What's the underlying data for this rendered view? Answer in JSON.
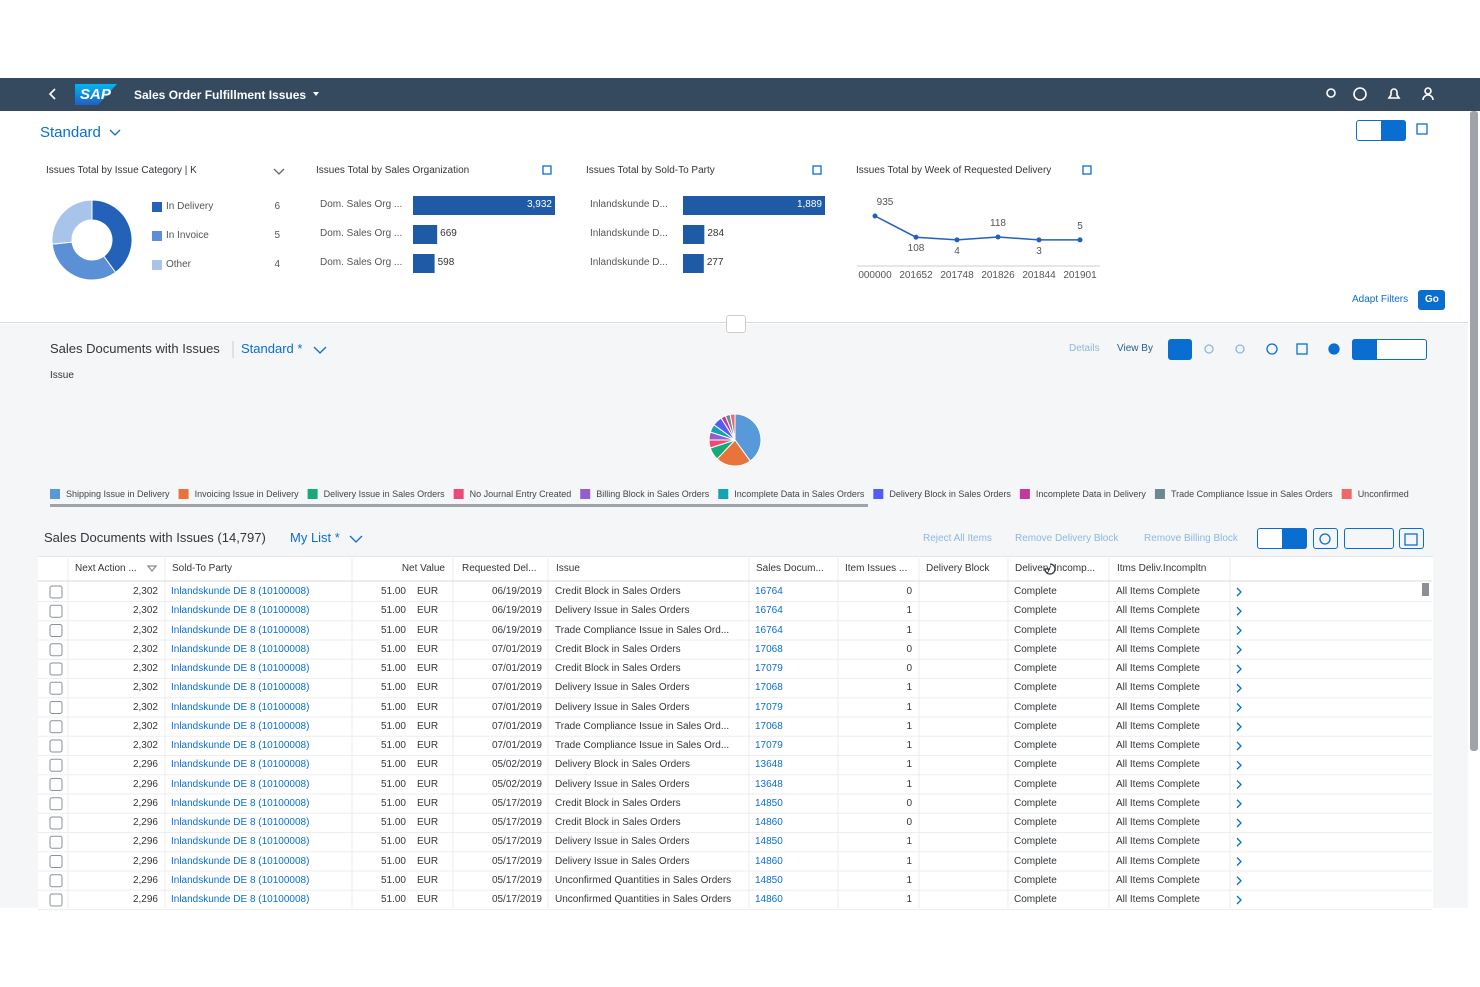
{
  "shell": {
    "logo": "SAP",
    "title": "Sales Order Fulfillment Issues"
  },
  "header": {
    "variant": "Standard",
    "adapt_filters": "Adapt Filters",
    "go": "Go"
  },
  "cards": [
    {
      "type": "donut",
      "title": "Issues Total by Issue Category  | K",
      "categories": [
        "In Delivery",
        "In Invoice",
        "Other"
      ],
      "values": [
        6,
        5,
        4
      ],
      "colors": [
        "#2461b8",
        "#5b8fd6",
        "#a9c4ea"
      ]
    },
    {
      "type": "bar",
      "title": "Issues Total by Sales Organization",
      "categories": [
        "Dom. Sales Org ...",
        "Dom. Sales Org ...",
        "Dom. Sales Org ..."
      ],
      "values": [
        3932,
        669,
        598
      ],
      "value_labels": [
        "3,932",
        "669",
        "598"
      ],
      "color": "#1f5aa6"
    },
    {
      "type": "bar",
      "title": "Issues Total by Sold-To Party",
      "categories": [
        "Inlandskunde D...",
        "Inlandskunde D...",
        "Inlandskunde D..."
      ],
      "values": [
        1889,
        284,
        277
      ],
      "value_labels": [
        "1,889",
        "284",
        "277"
      ],
      "color": "#1f5aa6"
    },
    {
      "type": "line",
      "title": "Issues Total by Week of Requested Delivery",
      "categories": [
        "000000",
        "201652",
        "201748",
        "201826",
        "201844",
        "201901"
      ],
      "values": [
        935,
        108,
        4,
        118,
        3,
        5
      ],
      "color": "#2461b8"
    }
  ],
  "chart_section": {
    "title": "Sales Documents with Issues",
    "variant": "Standard *",
    "details": "Details",
    "view_by": "View By",
    "dimension": "Issue",
    "chart": {
      "type": "pie",
      "categories": [
        "Shipping Issue in Delivery",
        "Invoicing Issue in Delivery",
        "Delivery Issue in Sales Orders",
        "No Journal Entry Created",
        "Billing Block in Sales Orders",
        "Incomplete Data in Sales Orders",
        "Delivery Block in Sales Orders",
        "Incomplete Data in Delivery",
        "Trade Compliance Issue in Sales Orders",
        "Unconfirmed"
      ],
      "values": [
        40,
        22,
        8,
        5,
        5,
        5,
        6,
        3,
        3,
        3
      ],
      "colors": [
        "#5899da",
        "#e8743b",
        "#19a979",
        "#ed4a7b",
        "#945ecf",
        "#13a4b4",
        "#525df4",
        "#bf399e",
        "#6c8893",
        "#ee6868"
      ]
    }
  },
  "table": {
    "title": "Sales Documents with Issues (14,797)",
    "variant": "My List *",
    "actions": [
      "Reject All Items",
      "Remove Delivery Block",
      "Remove Billing Block"
    ],
    "columns": [
      "Next Action ...",
      "Sold-To Party",
      "Net Value",
      "Requested Del...",
      "Issue",
      "Sales Docum...",
      "Item Issues ...",
      "Delivery Block",
      "Delivery Incomp...",
      "Itms Deliv.Incompltn"
    ],
    "rows": [
      [
        "2,302",
        "Inlandskunde DE 8 (10100008)",
        "51.00",
        "EUR",
        "06/19/2019",
        "Credit Block in Sales Orders",
        "16764",
        "0",
        "Complete",
        "All Items Complete"
      ],
      [
        "2,302",
        "Inlandskunde DE 8 (10100008)",
        "51.00",
        "EUR",
        "06/19/2019",
        "Delivery Issue in Sales Orders",
        "16764",
        "1",
        "Complete",
        "All Items Complete"
      ],
      [
        "2,302",
        "Inlandskunde DE 8 (10100008)",
        "51.00",
        "EUR",
        "06/19/2019",
        "Trade Compliance Issue in Sales Ord...",
        "16764",
        "1",
        "Complete",
        "All Items Complete"
      ],
      [
        "2,302",
        "Inlandskunde DE 8 (10100008)",
        "51.00",
        "EUR",
        "07/01/2019",
        "Credit Block in Sales Orders",
        "17068",
        "0",
        "Complete",
        "All Items Complete"
      ],
      [
        "2,302",
        "Inlandskunde DE 8 (10100008)",
        "51.00",
        "EUR",
        "07/01/2019",
        "Credit Block in Sales Orders",
        "17079",
        "0",
        "Complete",
        "All Items Complete"
      ],
      [
        "2,302",
        "Inlandskunde DE 8 (10100008)",
        "51.00",
        "EUR",
        "07/01/2019",
        "Delivery Issue in Sales Orders",
        "17068",
        "1",
        "Complete",
        "All Items Complete"
      ],
      [
        "2,302",
        "Inlandskunde DE 8 (10100008)",
        "51.00",
        "EUR",
        "07/01/2019",
        "Delivery Issue in Sales Orders",
        "17079",
        "1",
        "Complete",
        "All Items Complete"
      ],
      [
        "2,302",
        "Inlandskunde DE 8 (10100008)",
        "51.00",
        "EUR",
        "07/01/2019",
        "Trade Compliance Issue in Sales Ord...",
        "17068",
        "1",
        "Complete",
        "All Items Complete"
      ],
      [
        "2,302",
        "Inlandskunde DE 8 (10100008)",
        "51.00",
        "EUR",
        "07/01/2019",
        "Trade Compliance Issue in Sales Ord...",
        "17079",
        "1",
        "Complete",
        "All Items Complete"
      ],
      [
        "2,296",
        "Inlandskunde DE 8 (10100008)",
        "51.00",
        "EUR",
        "05/02/2019",
        "Delivery Block in Sales Orders",
        "13648",
        "1",
        "Complete",
        "All Items Complete"
      ],
      [
        "2,296",
        "Inlandskunde DE 8 (10100008)",
        "51.00",
        "EUR",
        "05/02/2019",
        "Delivery Issue in Sales Orders",
        "13648",
        "1",
        "Complete",
        "All Items Complete"
      ],
      [
        "2,296",
        "Inlandskunde DE 8 (10100008)",
        "51.00",
        "EUR",
        "05/17/2019",
        "Credit Block in Sales Orders",
        "14850",
        "0",
        "Complete",
        "All Items Complete"
      ],
      [
        "2,296",
        "Inlandskunde DE 8 (10100008)",
        "51.00",
        "EUR",
        "05/17/2019",
        "Credit Block in Sales Orders",
        "14860",
        "0",
        "Complete",
        "All Items Complete"
      ],
      [
        "2,296",
        "Inlandskunde DE 8 (10100008)",
        "51.00",
        "EUR",
        "05/17/2019",
        "Delivery Issue in Sales Orders",
        "14850",
        "1",
        "Complete",
        "All Items Complete"
      ],
      [
        "2,296",
        "Inlandskunde DE 8 (10100008)",
        "51.00",
        "EUR",
        "05/17/2019",
        "Delivery Issue in Sales Orders",
        "14860",
        "1",
        "Complete",
        "All Items Complete"
      ],
      [
        "2,296",
        "Inlandskunde DE 8 (10100008)",
        "51.00",
        "EUR",
        "05/17/2019",
        "Unconfirmed Quantities in Sales Orders",
        "14850",
        "1",
        "Complete",
        "All Items Complete"
      ],
      [
        "2,296",
        "Inlandskunde DE 8 (10100008)",
        "51.00",
        "EUR",
        "05/17/2019",
        "Unconfirmed Quantities in Sales Orders",
        "14860",
        "1",
        "Complete",
        "All Items Complete"
      ]
    ]
  }
}
